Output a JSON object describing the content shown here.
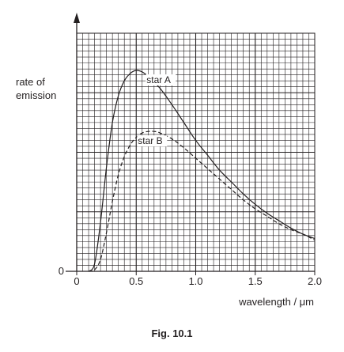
{
  "chart_data": {
    "type": "line",
    "title": "",
    "xlabel": "wavelength / μm",
    "ylabel": "rate of emission",
    "xlim": [
      0,
      2.0
    ],
    "ylim": [
      0,
      1.6
    ],
    "x_ticks": [
      "0",
      "0.5",
      "1.0",
      "1.5",
      "2.0"
    ],
    "y_ticks": [
      "0"
    ],
    "grid": true,
    "series": [
      {
        "name": "star A",
        "style": "solid",
        "color": "#231f20",
        "x": [
          0.1,
          0.15,
          0.2,
          0.25,
          0.3,
          0.35,
          0.4,
          0.45,
          0.5,
          0.55,
          0.6,
          0.7,
          0.8,
          0.9,
          1.0,
          1.1,
          1.2,
          1.3,
          1.4,
          1.5,
          1.6,
          1.7,
          1.8,
          1.9,
          2.0
        ],
        "values": [
          0.0,
          0.05,
          0.33,
          0.7,
          1.0,
          1.18,
          1.28,
          1.33,
          1.35,
          1.34,
          1.31,
          1.23,
          1.12,
          1.0,
          0.88,
          0.78,
          0.68,
          0.6,
          0.52,
          0.45,
          0.39,
          0.34,
          0.29,
          0.25,
          0.22
        ]
      },
      {
        "name": "star B",
        "style": "dashed",
        "color": "#231f20",
        "x": [
          0.1,
          0.15,
          0.2,
          0.25,
          0.3,
          0.35,
          0.4,
          0.45,
          0.5,
          0.55,
          0.6,
          0.65,
          0.7,
          0.8,
          0.9,
          1.0,
          1.1,
          1.2,
          1.3,
          1.4,
          1.5,
          1.6,
          1.7,
          1.8,
          1.9,
          2.0
        ],
        "values": [
          0.0,
          0.01,
          0.08,
          0.26,
          0.47,
          0.65,
          0.77,
          0.85,
          0.9,
          0.93,
          0.94,
          0.94,
          0.93,
          0.89,
          0.83,
          0.76,
          0.69,
          0.62,
          0.55,
          0.48,
          0.42,
          0.37,
          0.32,
          0.28,
          0.25,
          0.21
        ]
      }
    ]
  },
  "figure": {
    "caption": "Fig. 10.1",
    "ylabel_line1": "rate of",
    "ylabel_line2": "emission"
  }
}
